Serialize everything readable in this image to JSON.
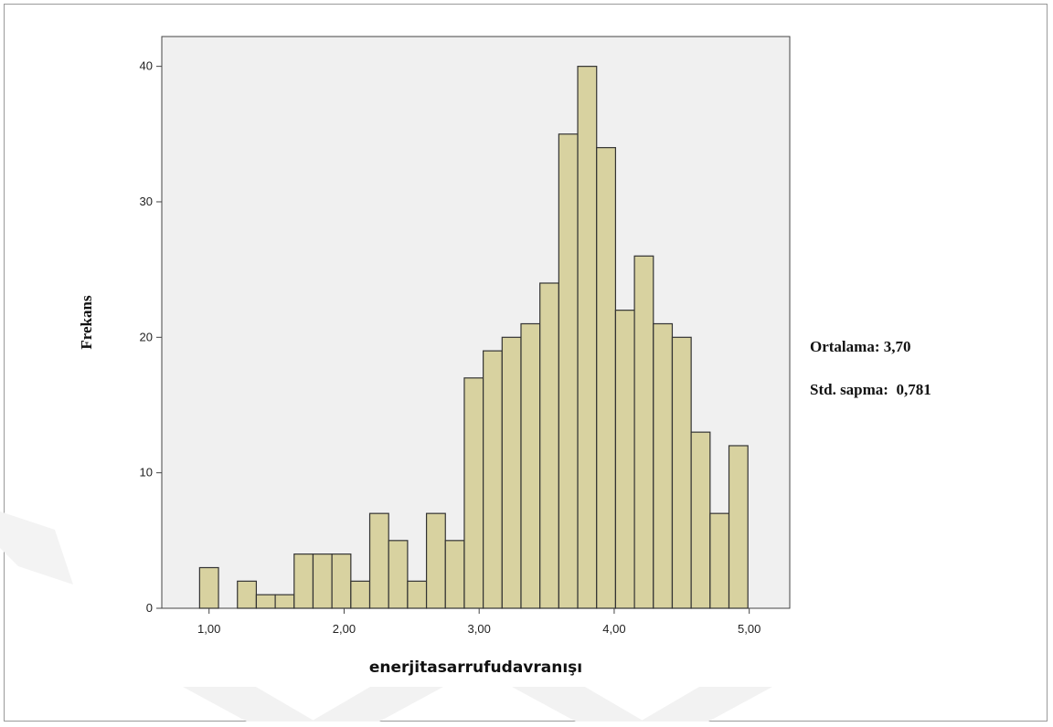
{
  "chart_data": {
    "type": "bar",
    "title": "",
    "xlabel": "enerjitasarrufudavranışı",
    "ylabel": "Frekans",
    "bins": [
      {
        "left": 0.93,
        "right": 1.07,
        "count": 3
      },
      {
        "left": 1.07,
        "right": 1.21,
        "count": 0
      },
      {
        "left": 1.21,
        "right": 1.35,
        "count": 2
      },
      {
        "left": 1.35,
        "right": 1.49,
        "count": 1
      },
      {
        "left": 1.49,
        "right": 1.63,
        "count": 1
      },
      {
        "left": 1.63,
        "right": 1.77,
        "count": 4
      },
      {
        "left": 1.77,
        "right": 1.91,
        "count": 4
      },
      {
        "left": 1.91,
        "right": 2.05,
        "count": 4
      },
      {
        "left": 2.05,
        "right": 2.19,
        "count": 2
      },
      {
        "left": 2.19,
        "right": 2.33,
        "count": 7
      },
      {
        "left": 2.33,
        "right": 2.47,
        "count": 5
      },
      {
        "left": 2.47,
        "right": 2.61,
        "count": 2
      },
      {
        "left": 2.61,
        "right": 2.75,
        "count": 7
      },
      {
        "left": 2.75,
        "right": 2.89,
        "count": 5
      },
      {
        "left": 2.89,
        "right": 3.03,
        "count": 17
      },
      {
        "left": 3.03,
        "right": 3.17,
        "count": 19
      },
      {
        "left": 3.17,
        "right": 3.31,
        "count": 20
      },
      {
        "left": 3.31,
        "right": 3.45,
        "count": 21
      },
      {
        "left": 3.45,
        "right": 3.59,
        "count": 24
      },
      {
        "left": 3.59,
        "right": 3.73,
        "count": 35
      },
      {
        "left": 3.73,
        "right": 3.87,
        "count": 40
      },
      {
        "left": 3.87,
        "right": 4.01,
        "count": 34
      },
      {
        "left": 4.01,
        "right": 4.15,
        "count": 22
      },
      {
        "left": 4.15,
        "right": 4.29,
        "count": 26
      },
      {
        "left": 4.29,
        "right": 4.43,
        "count": 21
      },
      {
        "left": 4.43,
        "right": 4.57,
        "count": 20
      },
      {
        "left": 4.57,
        "right": 4.71,
        "count": 13
      },
      {
        "left": 4.71,
        "right": 4.85,
        "count": 7
      },
      {
        "left": 4.85,
        "right": 4.99,
        "count": 12
      }
    ],
    "xlim": [
      0.65,
      5.3
    ],
    "ylim": [
      0,
      42.2
    ],
    "xticks": [
      1,
      2,
      3,
      4,
      5
    ],
    "xtick_labels": [
      "1,00",
      "2,00",
      "3,00",
      "4,00",
      "5,00"
    ],
    "yticks": [
      0,
      10,
      20,
      30,
      40
    ],
    "ytick_labels": [
      "0",
      "10",
      "20",
      "30",
      "40"
    ],
    "grid": false,
    "colors": {
      "bar_fill": "#d8d2a0",
      "bar_stroke": "#333333",
      "plot_background": "#f0f0f0",
      "axis": "#444444"
    }
  },
  "stats": {
    "mean_text": "Ortalama: 3,70",
    "std_text": "Std. sapma:  0,781"
  }
}
